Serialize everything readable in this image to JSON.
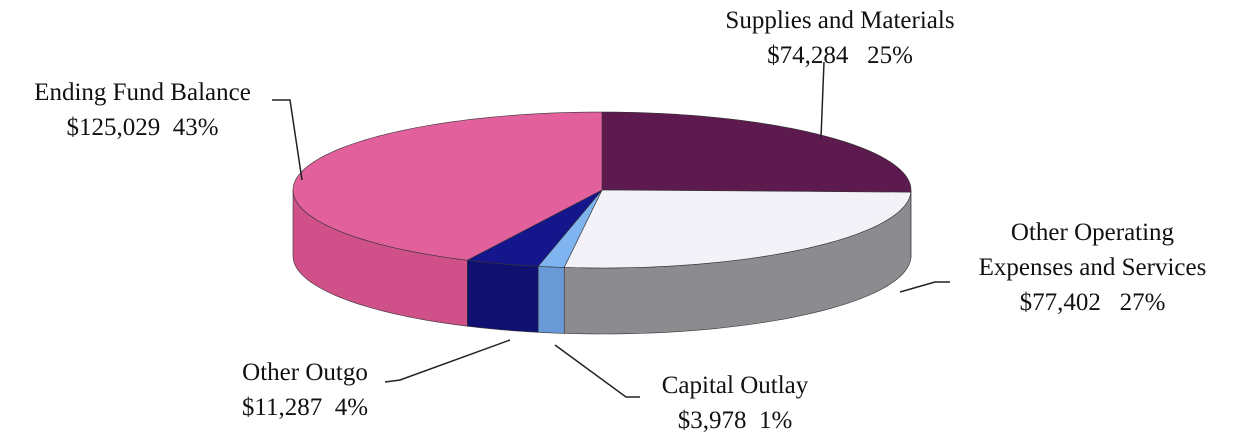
{
  "chart_data": {
    "type": "pie",
    "categories": [
      "Supplies and Materials",
      "Other Operating Expenses and Services",
      "Capital Outlay",
      "Other Outgo",
      "Ending Fund Balance"
    ],
    "values": [
      74284,
      77402,
      3978,
      11287,
      125029
    ],
    "value_labels": [
      "$74,284",
      "$77,402",
      "$3,978",
      "$11,287",
      "$125,029"
    ],
    "percent_labels": [
      "25%",
      "27%",
      "1%",
      "4%",
      "43%"
    ],
    "colors": [
      "#5c1a4e",
      "#f2f2f8",
      "#80b4f0",
      "#16168c",
      "#e2609c"
    ],
    "side_colors": [
      "#4a1540",
      "#8c8c90",
      "#6a9ad6",
      "#101070",
      "#d0508a"
    ]
  }
}
